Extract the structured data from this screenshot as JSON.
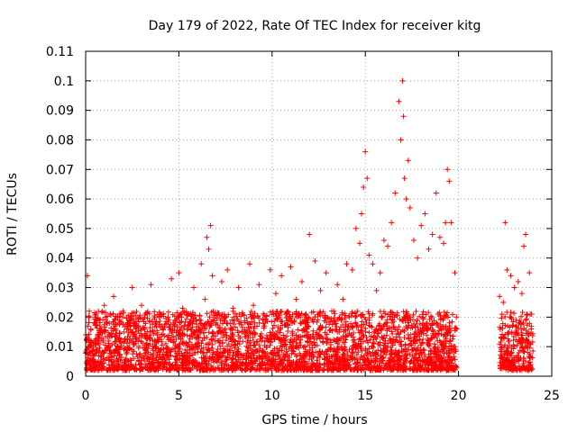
{
  "chart_data": {
    "type": "scatter",
    "title": "Day 179 of 2022, Rate Of TEC Index for receiver kitg",
    "xlabel": "GPS time / hours",
    "ylabel": "ROTI / TECUs",
    "xlim": [
      0,
      25
    ],
    "ylim": [
      0,
      0.11
    ],
    "xticks": [
      "0",
      "5",
      "10",
      "15",
      "20",
      "25"
    ],
    "yticks": [
      "0",
      "0.01",
      "0.02",
      "0.03",
      "0.04",
      "0.05",
      "0.06",
      "0.07",
      "0.08",
      "0.09",
      "0.1",
      "0.11"
    ],
    "grid": true,
    "marker": "+",
    "color": "#ff0000",
    "x": [
      0.0,
      0.1,
      0.2,
      0.3,
      0.5,
      0.8,
      1.0,
      1.3,
      1.5,
      1.6,
      1.8,
      2.0,
      2.3,
      2.5,
      2.7,
      3.0,
      3.2,
      3.5,
      3.8,
      4.0,
      4.3,
      4.6,
      4.8,
      5.0,
      5.2,
      5.5,
      5.8,
      6.0,
      6.2,
      6.4,
      6.5,
      6.6,
      6.7,
      6.8,
      7.0,
      7.3,
      7.6,
      7.9,
      8.2,
      8.5,
      8.8,
      9.0,
      9.3,
      9.6,
      9.9,
      10.2,
      10.5,
      10.8,
      11.0,
      11.3,
      11.6,
      11.8,
      12.0,
      12.3,
      12.6,
      12.9,
      13.2,
      13.5,
      13.8,
      14.0,
      14.3,
      14.5,
      14.7,
      14.8,
      14.9,
      15.0,
      15.1,
      15.2,
      15.4,
      15.6,
      15.8,
      16.0,
      16.2,
      16.4,
      16.6,
      16.8,
      16.9,
      17.0,
      17.05,
      17.1,
      17.2,
      17.3,
      17.4,
      17.6,
      17.8,
      18.0,
      18.2,
      18.4,
      18.6,
      18.8,
      19.0,
      19.2,
      19.3,
      19.4,
      19.5,
      19.6,
      19.8,
      19.9,
      22.2,
      22.4,
      22.5,
      22.6,
      22.8,
      23.0,
      23.2,
      23.4,
      23.5,
      23.6,
      23.8,
      23.9
    ],
    "y": [
      0.014,
      0.034,
      0.022,
      0.012,
      0.02,
      0.015,
      0.024,
      0.01,
      0.027,
      0.016,
      0.013,
      0.022,
      0.018,
      0.03,
      0.015,
      0.024,
      0.013,
      0.031,
      0.017,
      0.021,
      0.011,
      0.033,
      0.019,
      0.035,
      0.023,
      0.016,
      0.03,
      0.014,
      0.038,
      0.026,
      0.047,
      0.043,
      0.051,
      0.034,
      0.018,
      0.032,
      0.036,
      0.023,
      0.03,
      0.015,
      0.038,
      0.024,
      0.031,
      0.017,
      0.036,
      0.028,
      0.034,
      0.021,
      0.037,
      0.026,
      0.032,
      0.018,
      0.048,
      0.039,
      0.029,
      0.035,
      0.022,
      0.031,
      0.026,
      0.038,
      0.036,
      0.05,
      0.045,
      0.055,
      0.064,
      0.076,
      0.067,
      0.041,
      0.038,
      0.029,
      0.035,
      0.046,
      0.044,
      0.052,
      0.062,
      0.093,
      0.08,
      0.1,
      0.088,
      0.067,
      0.06,
      0.073,
      0.057,
      0.046,
      0.04,
      0.051,
      0.055,
      0.043,
      0.048,
      0.062,
      0.047,
      0.045,
      0.052,
      0.07,
      0.066,
      0.052,
      0.035,
      0.016,
      0.027,
      0.025,
      0.052,
      0.036,
      0.034,
      0.03,
      0.032,
      0.028,
      0.044,
      0.048,
      0.035,
      0.016
    ],
    "dense_band": {
      "x_segments": [
        [
          0,
          19.9
        ],
        [
          22.2,
          24.0
        ]
      ],
      "y_range": [
        0.002,
        0.022
      ]
    }
  }
}
